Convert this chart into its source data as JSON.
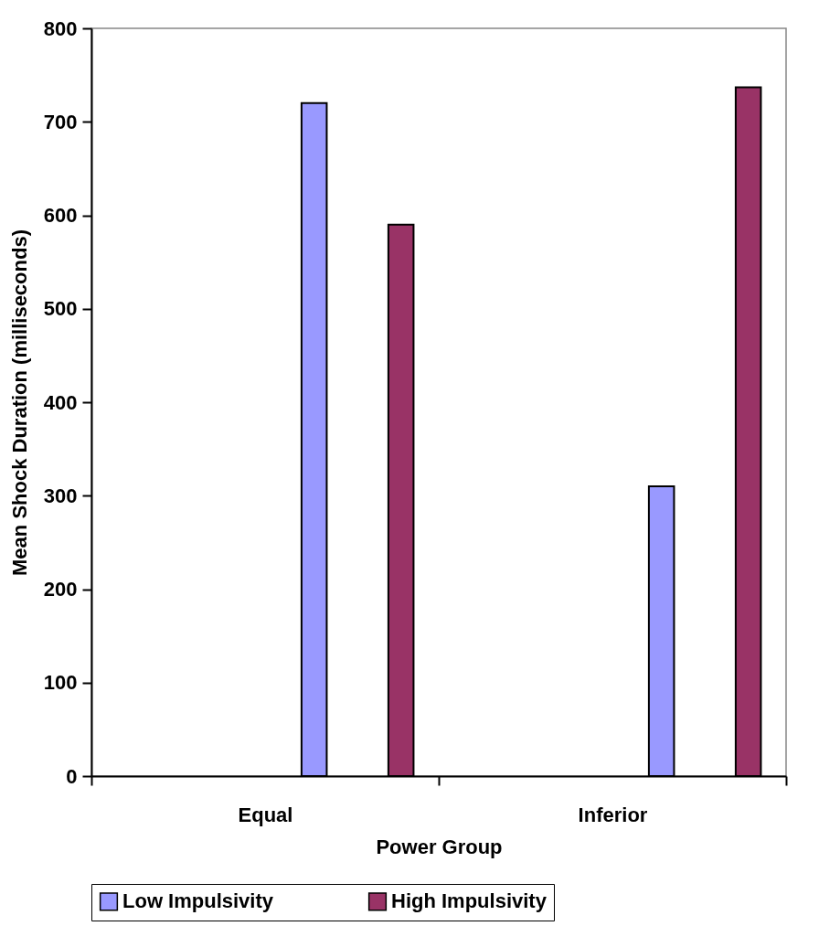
{
  "chart_data": {
    "type": "bar",
    "xlabel": "Power Group",
    "ylabel": "Mean Shock Duration (milliseconds)",
    "categories": [
      "Equal",
      "Inferior"
    ],
    "series": [
      {
        "name": "Low Impulsivity",
        "color": "#9999ff",
        "values": [
          720,
          310
        ]
      },
      {
        "name": "High Impulsivity",
        "color": "#993366",
        "values": [
          590,
          737
        ]
      }
    ],
    "ylim": [
      0,
      800
    ],
    "yticks": [
      0,
      100,
      200,
      300,
      400,
      500,
      600,
      700,
      800
    ],
    "grid": false,
    "legend": "bottom"
  }
}
